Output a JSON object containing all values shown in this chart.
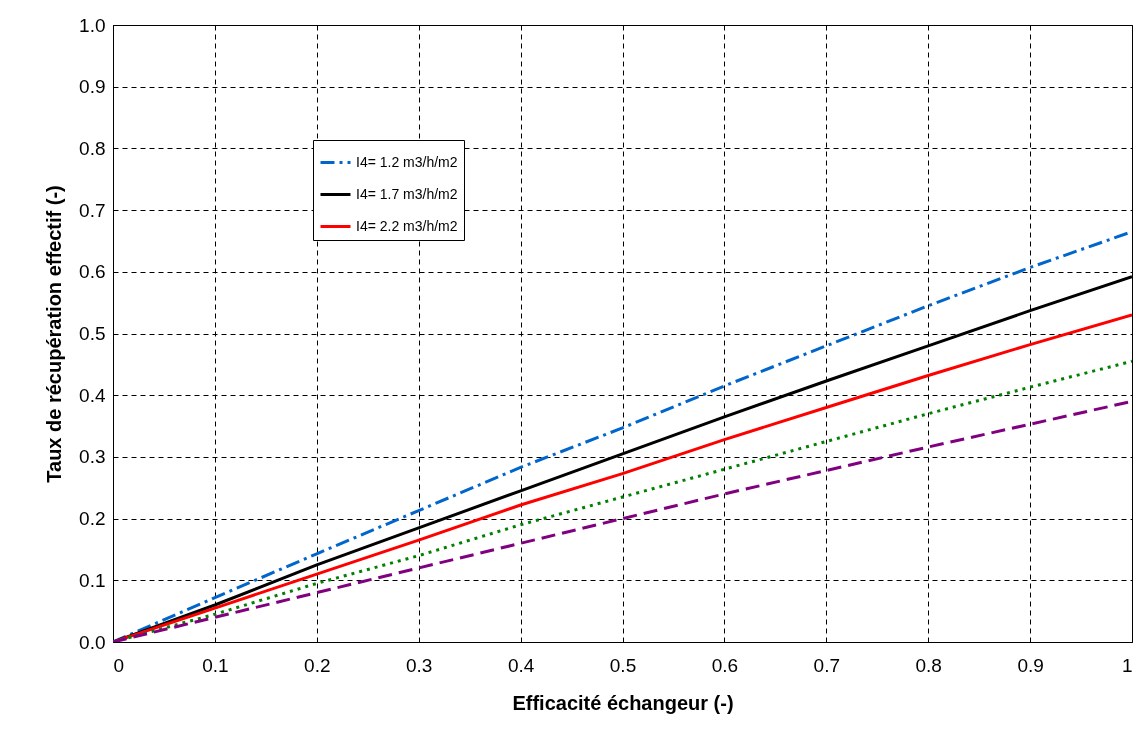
{
  "chart_data": {
    "type": "line",
    "xlabel": "Efficacité échangeur (-)",
    "ylabel": "Taux de récupération effectif (-)",
    "x": [
      0,
      0.1,
      0.2,
      0.3,
      0.4,
      0.5,
      0.6,
      0.7,
      0.8,
      0.9,
      1
    ],
    "series": [
      {
        "name": "I4= 1.2 m3/h/m2",
        "color": "#0066cc",
        "line_style": "dashdot",
        "values": [
          0,
          0.072,
          0.143,
          0.213,
          0.283,
          0.347,
          0.415,
          0.48,
          0.545,
          0.607,
          0.665
        ]
      },
      {
        "name": "I4= 1.7 m3/h/m2",
        "color": "#000000",
        "line_style": "solid",
        "values": [
          0,
          0.06,
          0.125,
          0.185,
          0.245,
          0.305,
          0.365,
          0.423,
          0.48,
          0.537,
          0.592
        ]
      },
      {
        "name": "I4= 2.2 m3/h/m2",
        "color": "#ff0000",
        "line_style": "solid",
        "values": [
          0,
          0.055,
          0.11,
          0.165,
          0.222,
          0.273,
          0.328,
          0.38,
          0.432,
          0.482,
          0.53
        ]
      },
      {
        "color": "#008000",
        "line_style": "dotted",
        "values": [
          0,
          0.045,
          0.095,
          0.14,
          0.19,
          0.235,
          0.28,
          0.325,
          0.37,
          0.413,
          0.455
        ]
      },
      {
        "color": "#800080",
        "line_style": "dashed",
        "values": [
          0,
          0.04,
          0.08,
          0.12,
          0.16,
          0.2,
          0.24,
          0.278,
          0.316,
          0.353,
          0.39
        ]
      }
    ],
    "xlim": [
      0,
      1
    ],
    "xticks": [
      0,
      0.1,
      0.2,
      0.3,
      0.4,
      0.5,
      0.6,
      0.7,
      0.8,
      0.9,
      1
    ],
    "ylim": [
      0,
      1
    ],
    "yticks": [
      {
        "value": 0,
        "label": "0.0"
      },
      0.1,
      0.2,
      0.3,
      0.4,
      0.5,
      0.6,
      0.7,
      0.8,
      0.9,
      {
        "value": 1,
        "label": "1.0"
      }
    ],
    "grid": true,
    "legend": "top left",
    "marker": "none"
  }
}
